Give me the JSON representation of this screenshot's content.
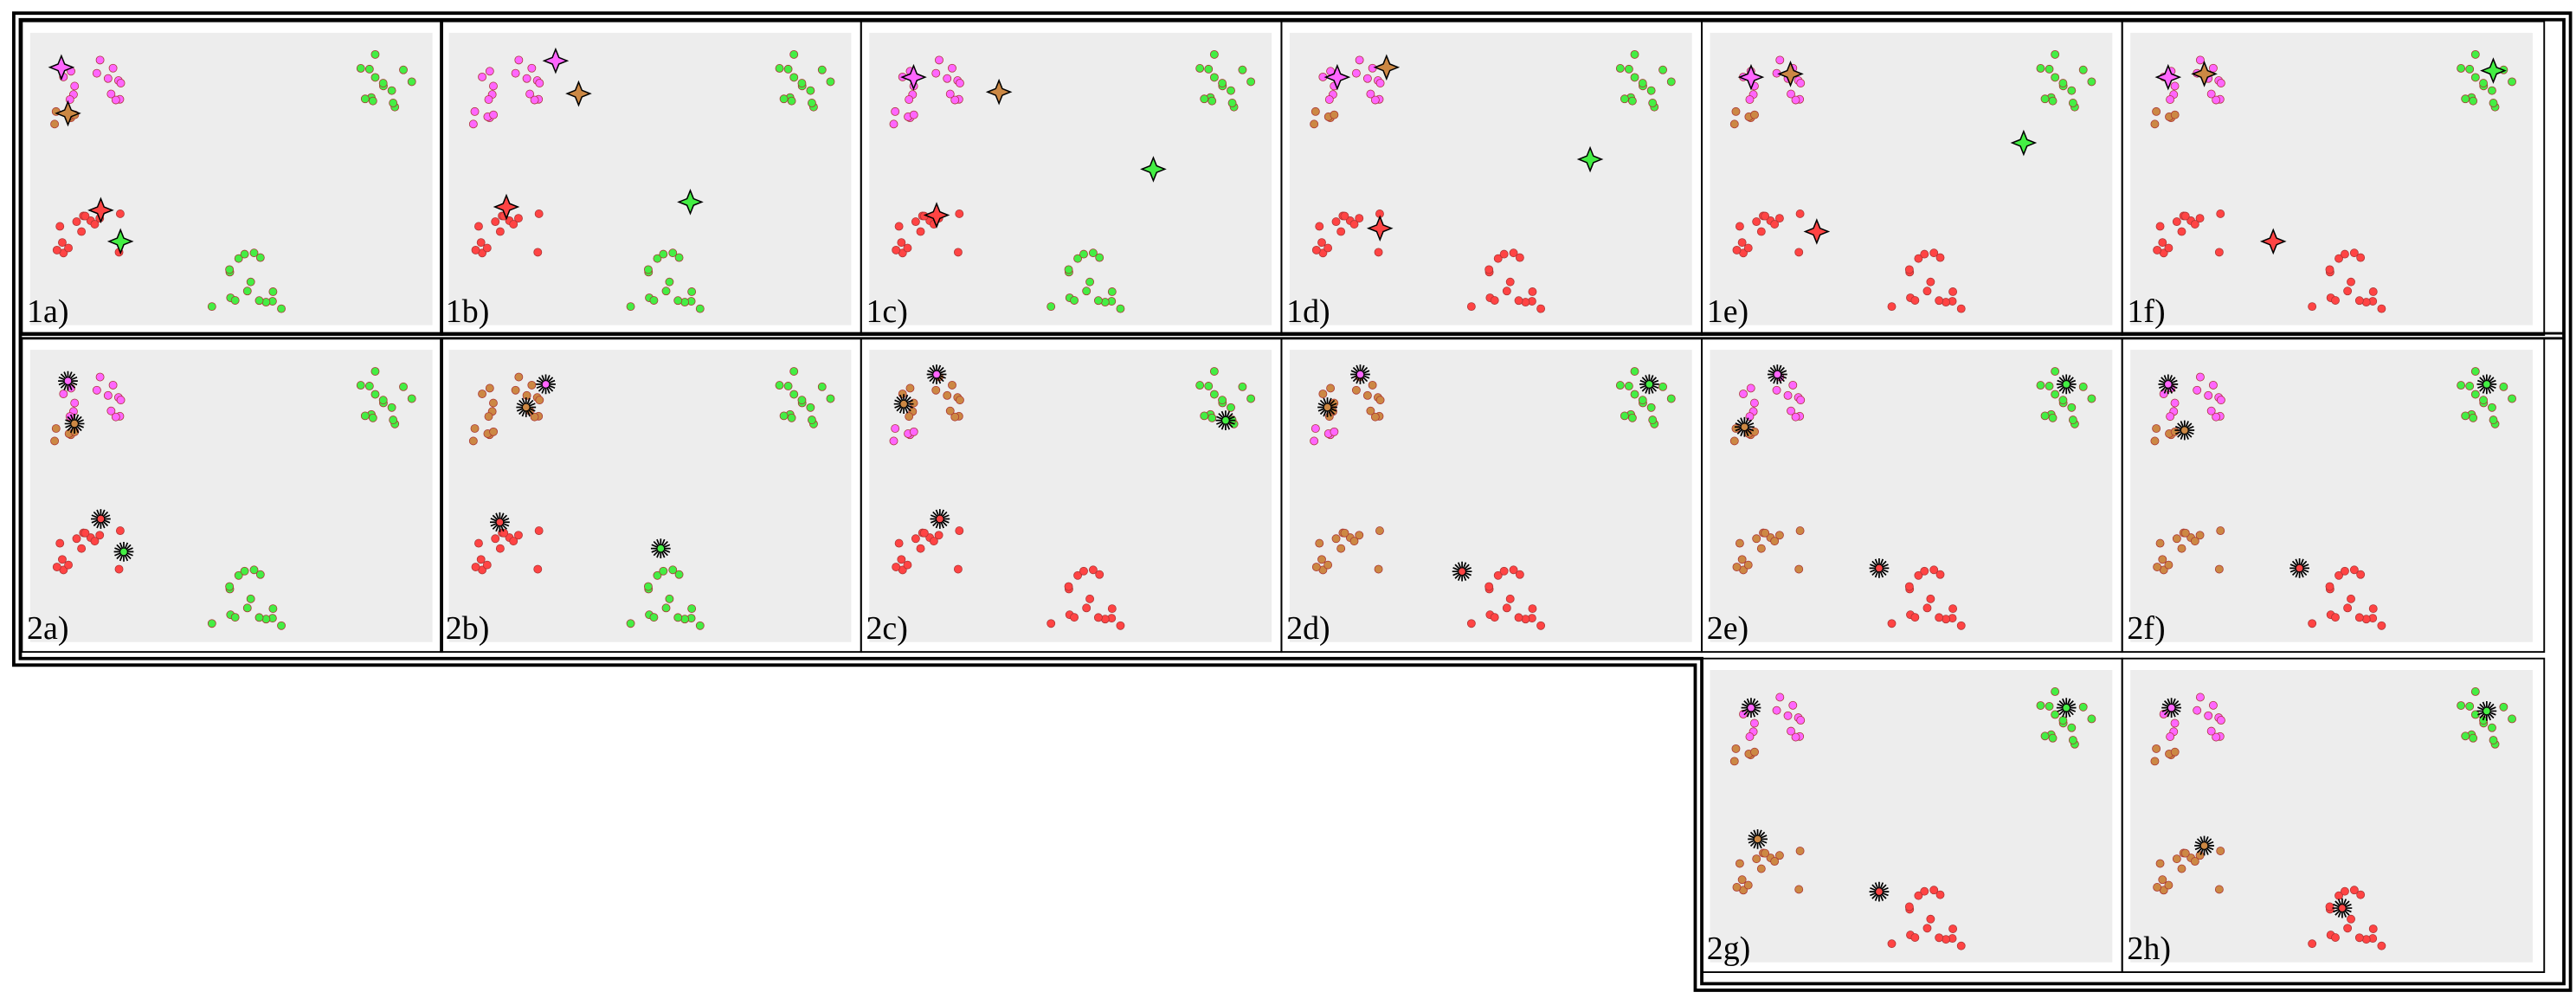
{
  "panels": [
    {
      "label": "1a)"
    },
    {
      "label": "1b)"
    },
    {
      "label": "1c)"
    },
    {
      "label": "1d)"
    },
    {
      "label": "1e)"
    },
    {
      "label": "1f)"
    },
    {
      "label": "2a)"
    },
    {
      "label": "2b)"
    },
    {
      "label": "2c)"
    },
    {
      "label": "2d)"
    },
    {
      "label": "2e)"
    },
    {
      "label": "2f)"
    },
    {
      "label": "2g)"
    },
    {
      "label": "2h)"
    }
  ]
}
